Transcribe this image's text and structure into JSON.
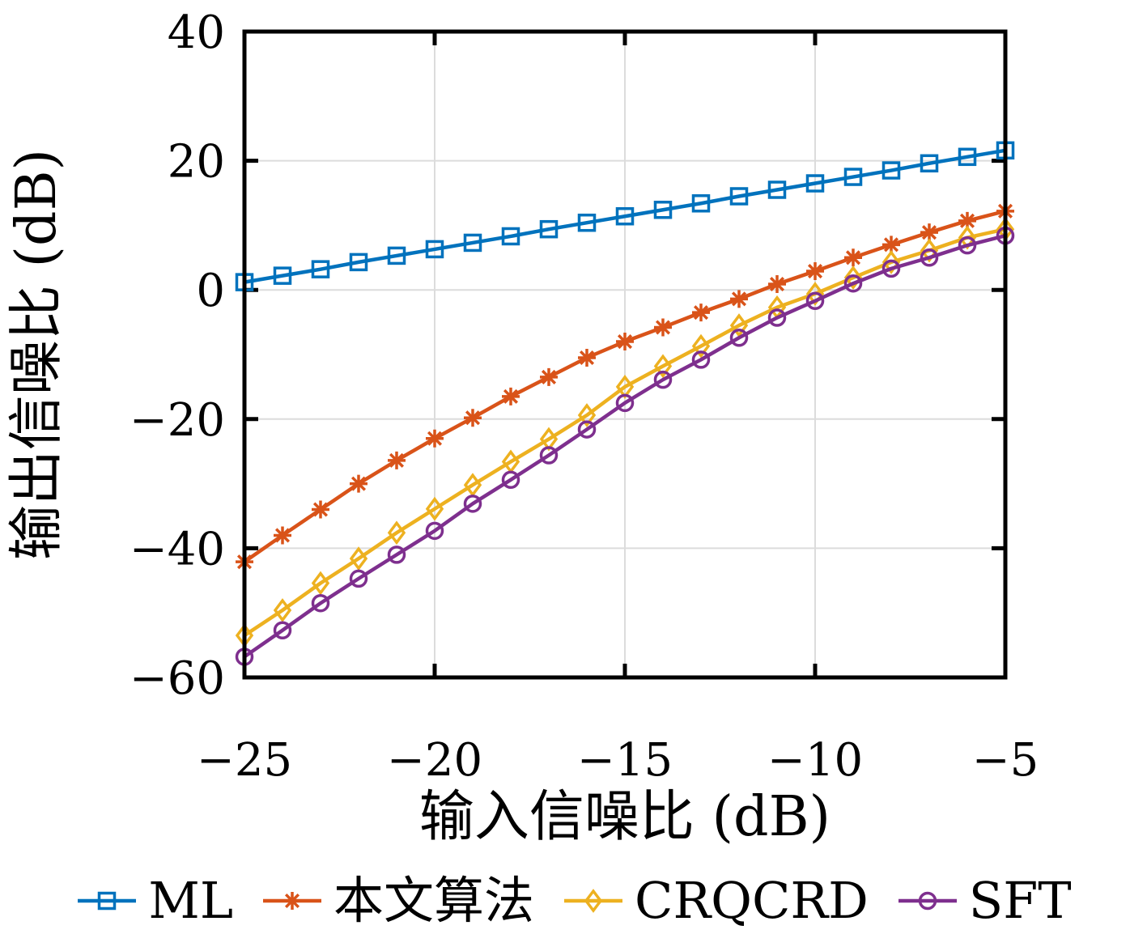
{
  "figure": {
    "background": "#ffffff",
    "frame_color": "#000000",
    "grid_color": "#dcdcdc"
  },
  "chart_data": {
    "type": "line",
    "title": "",
    "xlabel": "输入信噪比 (dB)",
    "ylabel": "输出信噪比 (dB)",
    "xlim": [
      -25,
      -5
    ],
    "ylim": [
      -60,
      40
    ],
    "grid": true,
    "legend_position": "bottom",
    "x_ticks": [
      -25,
      -20,
      -15,
      -10,
      -5
    ],
    "x_tick_labels": [
      "−25",
      "−20",
      "−15",
      "−10",
      "−5"
    ],
    "y_ticks": [
      40,
      20,
      0,
      -20,
      -40,
      -60
    ],
    "y_tick_labels": [
      "40",
      "20",
      "0",
      "−20",
      "−40",
      "−60"
    ],
    "x": [
      -25,
      -24,
      -23,
      -22,
      -21,
      -20,
      -19,
      -18,
      -17,
      -16,
      -15,
      -14,
      -13,
      -12,
      -11,
      -10,
      -9,
      -8,
      -7,
      -6,
      -5
    ],
    "series": [
      {
        "name": "ML",
        "color": "#0072BD",
        "marker": "square",
        "values": [
          1.2,
          2.2,
          3.2,
          4.3,
          5.3,
          6.3,
          7.3,
          8.3,
          9.4,
          10.4,
          11.4,
          12.4,
          13.4,
          14.5,
          15.5,
          16.5,
          17.5,
          18.5,
          19.6,
          20.6,
          21.6
        ]
      },
      {
        "name": "本文算法",
        "color": "#D95319",
        "marker": "asterisk",
        "values": [
          -42.1,
          -38.0,
          -34.0,
          -30.0,
          -26.4,
          -23.0,
          -19.8,
          -16.5,
          -13.5,
          -10.5,
          -8.0,
          -5.8,
          -3.5,
          -1.4,
          0.9,
          2.9,
          5.0,
          7.0,
          8.9,
          10.7,
          12.2
        ]
      },
      {
        "name": "CRQCRD",
        "color": "#EDB120",
        "marker": "diamond",
        "values": [
          -53.5,
          -49.6,
          -45.4,
          -41.6,
          -37.6,
          -33.9,
          -30.2,
          -26.6,
          -23.1,
          -19.4,
          -15.0,
          -11.8,
          -8.7,
          -5.5,
          -2.7,
          -0.6,
          1.9,
          4.3,
          6.1,
          8.1,
          9.4
        ]
      },
      {
        "name": "SFT",
        "color": "#7E2F8E",
        "marker": "circle",
        "values": [
          -56.8,
          -52.7,
          -48.5,
          -44.7,
          -41.0,
          -37.3,
          -33.1,
          -29.4,
          -25.6,
          -21.6,
          -17.5,
          -13.9,
          -10.8,
          -7.4,
          -4.3,
          -1.7,
          1.0,
          3.3,
          5.0,
          6.9,
          8.4
        ]
      }
    ]
  }
}
